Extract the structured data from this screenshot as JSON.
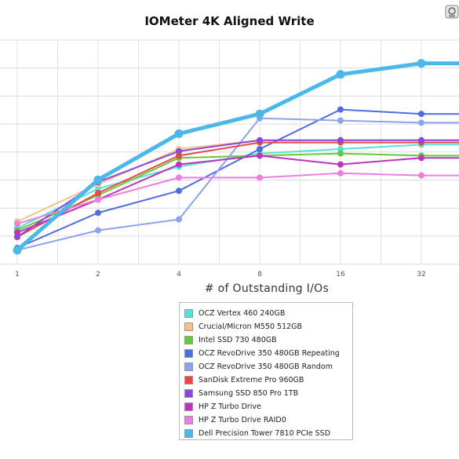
{
  "chart_data": {
    "type": "line",
    "title": "IOMeter 4K Aligned Write",
    "xlabel": "# of Outstanding I/Os",
    "ylabel": "",
    "x": [
      1,
      2,
      4,
      8,
      16,
      32
    ],
    "x_tick_labels": [
      "1",
      "2",
      "4",
      "8",
      "16",
      "32"
    ],
    "x_scale": "log2",
    "ylim": [
      0,
      100
    ],
    "grid": true,
    "legend_position": "bottom",
    "series": [
      {
        "name": "OCZ Vertex 460 240GB",
        "color": "#55e3d9",
        "values": [
          14,
          32,
          42,
          48,
          50,
          52
        ]
      },
      {
        "name": "Crucial/Micron M550 512GB",
        "color": "#f1c38b",
        "values": [
          17,
          34,
          50,
          54,
          54,
          54
        ]
      },
      {
        "name": "Intel SSD 730 480GB",
        "color": "#69c73a",
        "values": [
          13,
          29,
          46,
          47,
          48,
          47
        ]
      },
      {
        "name": "OCZ RevoDrive 350 480GB Repeating",
        "color": "#4e6de0",
        "values": [
          5,
          21,
          31,
          50,
          68,
          66
        ]
      },
      {
        "name": "OCZ RevoDrive 350 480GB Random",
        "color": "#8ea2ee",
        "values": [
          4,
          13,
          18,
          64,
          63,
          62
        ]
      },
      {
        "name": "SanDisk Extreme Pro 960GB",
        "color": "#eb4545",
        "values": [
          10,
          30,
          47,
          53,
          53,
          53
        ]
      },
      {
        "name": "Samsung SSD 850 Pro 1TB",
        "color": "#8c47d6",
        "values": [
          10,
          35,
          49,
          54,
          54,
          54
        ]
      },
      {
        "name": "HP Z Turbo Drive",
        "color": "#bb34be",
        "values": [
          12,
          27,
          43,
          47,
          43,
          46
        ]
      },
      {
        "name": "HP Z Turbo Drive RAID0",
        "color": "#ec7ee0",
        "values": [
          16,
          27,
          37,
          37,
          39,
          38
        ]
      },
      {
        "name": "Dell Precision Tower 7810 PCIe SSD",
        "color": "#4ab8e8",
        "values": [
          4,
          36,
          57,
          66,
          84,
          89
        ]
      }
    ]
  }
}
